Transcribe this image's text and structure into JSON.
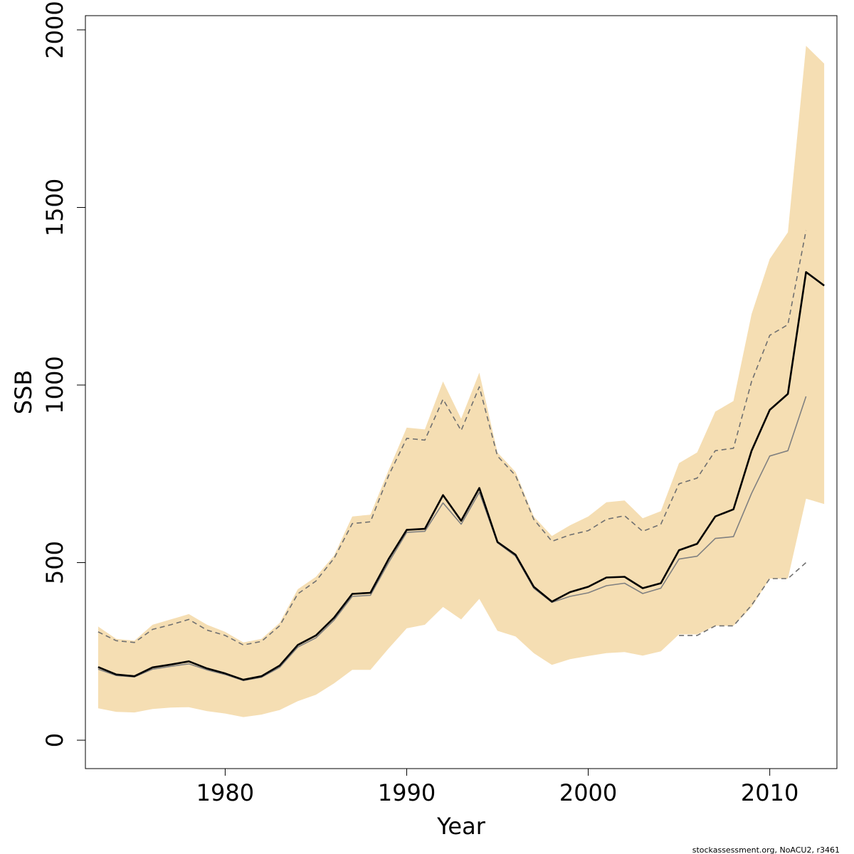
{
  "chart_data": {
    "type": "line",
    "title": "",
    "xlabel": "Year",
    "ylabel": "SSB",
    "xlim": [
      1972.3,
      2013.7
    ],
    "ylim": [
      -80,
      2040
    ],
    "xticks": [
      1980,
      1990,
      2000,
      2010
    ],
    "yticks": [
      0,
      500,
      1000,
      1500,
      2000
    ],
    "grid": false,
    "colors": {
      "band": "#f5deb3",
      "estimate": "#000000",
      "previous": "#808080",
      "previous_bounds": "#707070"
    },
    "x": [
      1973,
      1974,
      1975,
      1976,
      1977,
      1978,
      1979,
      1980,
      1981,
      1982,
      1983,
      1984,
      1985,
      1986,
      1987,
      1988,
      1989,
      1990,
      1991,
      1992,
      1993,
      1994,
      1995,
      1996,
      1997,
      1998,
      1999,
      2000,
      2001,
      2002,
      2003,
      2004,
      2005,
      2006,
      2007,
      2008,
      2009,
      2010,
      2011,
      2012,
      2013
    ],
    "series": [
      {
        "role": "confidence-band",
        "upper": [
          320,
          285,
          280,
          325,
          340,
          355,
          325,
          305,
          275,
          285,
          330,
          425,
          460,
          520,
          630,
          635,
          760,
          880,
          875,
          1010,
          905,
          1035,
          810,
          755,
          630,
          575,
          605,
          630,
          670,
          675,
          625,
          645,
          780,
          810,
          925,
          955,
          1200,
          1355,
          1430,
          1955,
          1905
        ],
        "lower": [
          90,
          80,
          78,
          88,
          92,
          93,
          82,
          75,
          65,
          72,
          85,
          110,
          128,
          160,
          198,
          198,
          258,
          315,
          325,
          375,
          340,
          398,
          308,
          292,
          245,
          212,
          228,
          237,
          245,
          248,
          238,
          250,
          298,
          298,
          322,
          322,
          375,
          455,
          455,
          680,
          665
        ]
      },
      {
        "role": "estimate",
        "values": [
          206,
          185,
          180,
          205,
          213,
          222,
          202,
          188,
          170,
          180,
          210,
          268,
          295,
          345,
          412,
          415,
          510,
          592,
          595,
          690,
          618,
          710,
          558,
          522,
          432,
          390,
          417,
          432,
          458,
          460,
          428,
          442,
          535,
          553,
          630,
          650,
          815,
          930,
          975,
          1318,
          1280
        ]
      },
      {
        "role": "previous-estimate",
        "values": [
          200,
          182,
          178,
          200,
          208,
          215,
          198,
          185,
          168,
          177,
          205,
          262,
          288,
          338,
          405,
          408,
          500,
          585,
          588,
          668,
          608,
          698,
          556,
          518,
          428,
          388,
          405,
          415,
          435,
          442,
          413,
          428,
          510,
          518,
          568,
          573,
          695,
          800,
          815,
          968,
          null
        ]
      },
      {
        "role": "previous-upper",
        "values": [
          305,
          280,
          275,
          312,
          325,
          340,
          310,
          295,
          268,
          278,
          322,
          412,
          448,
          512,
          610,
          615,
          745,
          850,
          845,
          960,
          872,
          995,
          800,
          745,
          622,
          560,
          578,
          590,
          622,
          632,
          588,
          608,
          722,
          738,
          815,
          822,
          1010,
          1140,
          1170,
          1435,
          null
        ]
      },
      {
        "role": "previous-lower",
        "values": [
          null,
          null,
          null,
          null,
          null,
          null,
          null,
          null,
          null,
          null,
          null,
          null,
          null,
          null,
          null,
          null,
          null,
          null,
          null,
          null,
          null,
          null,
          null,
          null,
          null,
          null,
          null,
          null,
          null,
          null,
          null,
          null,
          295,
          295,
          322,
          322,
          380,
          455,
          455,
          500,
          null
        ]
      }
    ]
  },
  "footnote": "stockassessment.org, NoACU2, r3461"
}
